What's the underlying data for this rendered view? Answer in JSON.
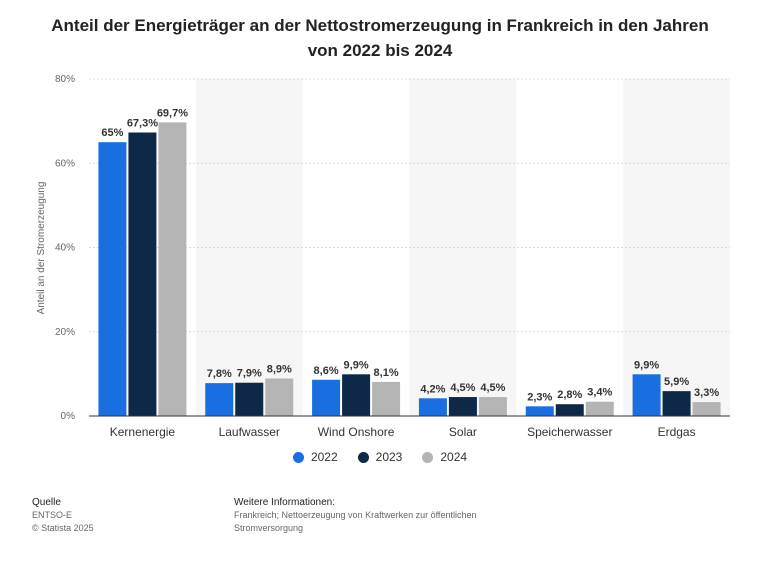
{
  "header": {
    "title_line1": "Anteil der Energieträger an der Nettostromerzeugung in Frankreich in den Jahren",
    "title_line2": "von 2022 bis 2024"
  },
  "chart_data": {
    "type": "bar",
    "title": "Anteil der Energieträger an der Nettostromerzeugung in Frankreich in den Jahren von 2022 bis 2024",
    "xlabel": "",
    "ylabel": "Anteil an der Stromerzeugung",
    "ylim": [
      0,
      80
    ],
    "yticks": [
      0,
      20,
      40,
      60,
      80
    ],
    "ytick_labels": [
      "0%",
      "20%",
      "40%",
      "60%",
      "80%"
    ],
    "grid": true,
    "legend_position": "bottom",
    "categories": [
      "Kernenergie",
      "Laufwasser",
      "Wind Onshore",
      "Solar",
      "Speicherwasser",
      "Erdgas"
    ],
    "series": [
      {
        "name": "2022",
        "color": "#1a6fe0",
        "values": [
          65,
          7.8,
          8.6,
          4.2,
          2.3,
          9.9
        ],
        "labels": [
          "65%",
          "7,8%",
          "8,6%",
          "4,2%",
          "2,3%",
          "9,9%"
        ]
      },
      {
        "name": "2023",
        "color": "#0e2847",
        "values": [
          67.3,
          7.9,
          9.9,
          4.5,
          2.8,
          5.9
        ],
        "labels": [
          "67,3%",
          "7,9%",
          "9,9%",
          "4,5%",
          "2,8%",
          "5,9%"
        ]
      },
      {
        "name": "2024",
        "color": "#b4b4b4",
        "values": [
          69.7,
          8.9,
          8.1,
          4.5,
          3.4,
          3.3
        ],
        "labels": [
          "69,7%",
          "8,9%",
          "8,1%",
          "4,5%",
          "3,4%",
          "3,3%"
        ]
      }
    ]
  },
  "footer": {
    "source_heading": "Quelle",
    "source": "ENTSO-E",
    "copyright": "© Statista 2025",
    "info_heading": "Weitere Informationen:",
    "info": "Frankreich; Nettoerzeugung von Kraftwerken zur öffentlichen Stromversorgung"
  }
}
